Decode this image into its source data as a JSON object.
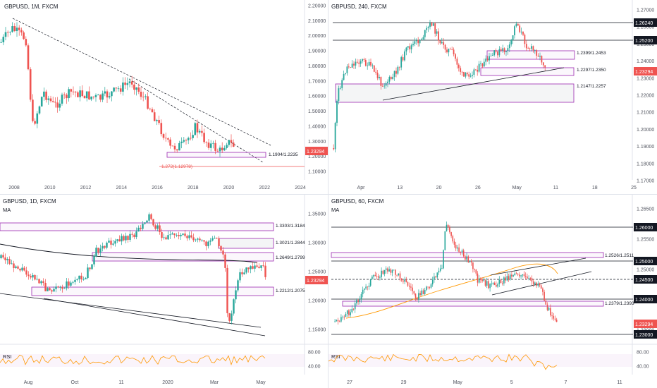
{
  "panels": [
    {
      "id": "p1",
      "title": "GBPUSD, 1M, FXCM",
      "ma_label": "",
      "price_ticks": [
        "2.20000",
        "2.10000",
        "2.00000",
        "1.90000",
        "1.80000",
        "1.70000",
        "1.60000",
        "1.50000",
        "1.40000",
        "1.30000",
        "1.20000",
        "1.10000"
      ],
      "price_tag": "1.23294",
      "time_ticks": [
        "2008",
        "2010",
        "2012",
        "2014",
        "2016",
        "2018",
        "2020",
        "2022",
        "2024"
      ],
      "box_labels": [
        "1.1904/1.2235"
      ],
      "red_label": "1.272(1.12978)"
    },
    {
      "id": "p2",
      "title": "GBPUSD, 240, FXCM",
      "ma_label": "",
      "price_ticks": [
        "1.27000",
        "1.26000",
        "1.25000",
        "1.24000",
        "1.23000",
        "1.22000",
        "1.21000",
        "1.20000",
        "1.19000",
        "1.18000",
        "1.17000"
      ],
      "price_tag": "1.23294",
      "level_tags": [
        "1.26240",
        "1.25200"
      ],
      "time_ticks": [
        "Apr",
        "13",
        "20",
        "26",
        "May",
        "11",
        "18",
        "25"
      ],
      "box_labels": [
        "1.2399/1.2453",
        "1.2297/1.2350",
        "1.2147/1.2257"
      ]
    },
    {
      "id": "p3",
      "title": "GBPUSD, 1D, FXCM",
      "ma_label": "MA",
      "price_ticks": [
        "1.35000",
        "1.30000",
        "1.25000",
        "1.20000",
        "1.15000"
      ],
      "price_tag": "1.23294",
      "time_ticks": [
        "Aug",
        "Oct",
        "11",
        "2020",
        "Mar",
        "May"
      ],
      "box_labels": [
        "1.3303/1.3184",
        "1.3021/1.2844",
        "1.2649/1.2799",
        "1.2212/1.2075"
      ],
      "rsi_label": "RSI",
      "rsi_ticks": [
        "80.00",
        "40.00"
      ]
    },
    {
      "id": "p4",
      "title": "GBPUSD, 60, FXCM",
      "ma_label": "MA",
      "price_ticks": [
        "1.26500",
        "1.25500",
        "1.25000",
        "1.23500",
        "1.23000"
      ],
      "price_tag": "1.23294",
      "level_tags": [
        "1.26000",
        "1.25000",
        "1.24500",
        "1.24000",
        "1.23000"
      ],
      "time_ticks": [
        "27",
        "29",
        "May",
        "5",
        "7",
        "11"
      ],
      "box_labels": [
        "1.2526/1.2511",
        "1.2379/1.2393"
      ],
      "rsi_label": "RSI",
      "rsi_ticks": [
        "80.00",
        "40.00"
      ]
    }
  ],
  "colors": {
    "up": "#26a69a",
    "down": "#ef5350",
    "box": "#9c27b0",
    "ma": "#ff9800",
    "rsi": "#ff9800",
    "tag": "#ef5350",
    "level_tag": "#131722"
  }
}
